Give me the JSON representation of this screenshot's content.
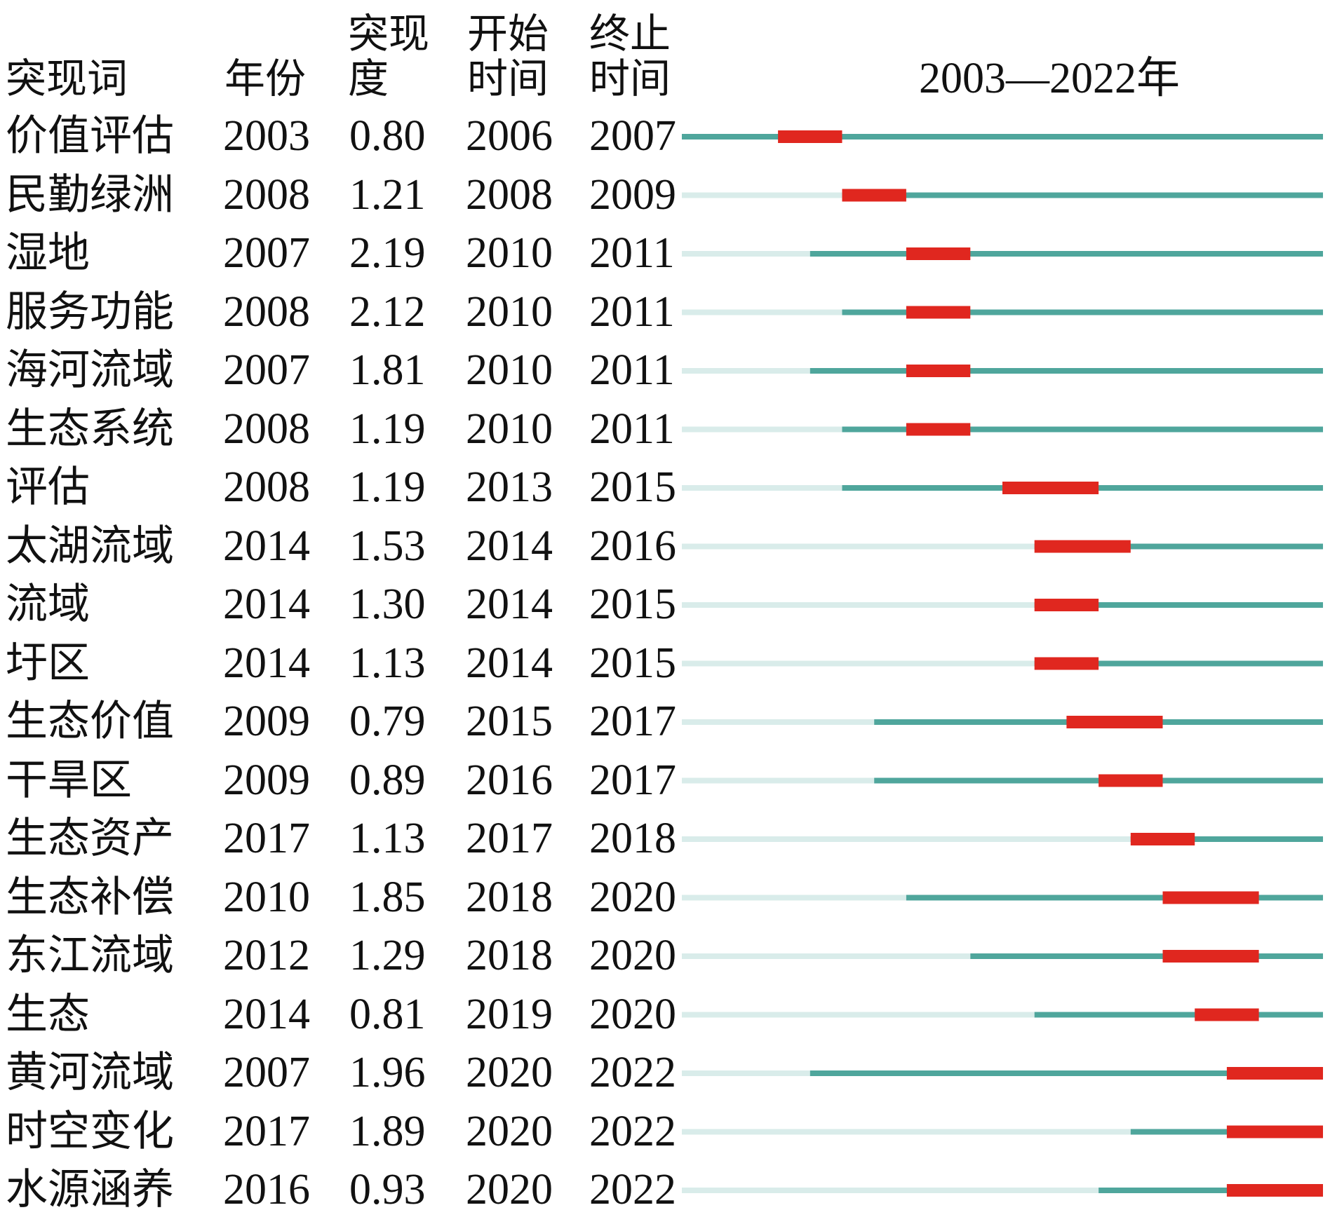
{
  "headers": {
    "keyword": "突现词",
    "year": "年份",
    "strength": "突现度",
    "begin": "开始时间",
    "end": "终止时间",
    "timeline": "2003—2022年"
  },
  "chart_data": {
    "type": "table",
    "timeline_range": [
      2003,
      2022
    ],
    "colors": {
      "before": "#d9ecea",
      "span": "#4fa69c",
      "burst": "#e0271f"
    },
    "columns": [
      "突现词",
      "年份",
      "突现度",
      "开始时间",
      "终止时间"
    ],
    "rows": [
      {
        "keyword": "价值评估",
        "year": "2003",
        "strength": "0.80",
        "begin": "2006",
        "end": "2007"
      },
      {
        "keyword": "民勤绿洲",
        "year": "2008",
        "strength": "1.21",
        "begin": "2008",
        "end": "2009"
      },
      {
        "keyword": "湿地",
        "year": "2007",
        "strength": "2.19",
        "begin": "2010",
        "end": "2011"
      },
      {
        "keyword": "服务功能",
        "year": "2008",
        "strength": "2.12",
        "begin": "2010",
        "end": "2011"
      },
      {
        "keyword": "海河流域",
        "year": "2007",
        "strength": "1.81",
        "begin": "2010",
        "end": "2011"
      },
      {
        "keyword": "生态系统",
        "year": "2008",
        "strength": "1.19",
        "begin": "2010",
        "end": "2011"
      },
      {
        "keyword": "评估",
        "year": "2008",
        "strength": "1.19",
        "begin": "2013",
        "end": "2015"
      },
      {
        "keyword": "太湖流域",
        "year": "2014",
        "strength": "1.53",
        "begin": "2014",
        "end": "2016"
      },
      {
        "keyword": "流域",
        "year": "2014",
        "strength": "1.30",
        "begin": "2014",
        "end": "2015"
      },
      {
        "keyword": "圩区",
        "year": "2014",
        "strength": "1.13",
        "begin": "2014",
        "end": "2015"
      },
      {
        "keyword": "生态价值",
        "year": "2009",
        "strength": "0.79",
        "begin": "2015",
        "end": "2017"
      },
      {
        "keyword": "干旱区",
        "year": "2009",
        "strength": "0.89",
        "begin": "2016",
        "end": "2017"
      },
      {
        "keyword": "生态资产",
        "year": "2017",
        "strength": "1.13",
        "begin": "2017",
        "end": "2018"
      },
      {
        "keyword": "生态补偿",
        "year": "2010",
        "strength": "1.85",
        "begin": "2018",
        "end": "2020"
      },
      {
        "keyword": "东江流域",
        "year": "2012",
        "strength": "1.29",
        "begin": "2018",
        "end": "2020"
      },
      {
        "keyword": "生态",
        "year": "2014",
        "strength": "0.81",
        "begin": "2019",
        "end": "2020"
      },
      {
        "keyword": "黄河流域",
        "year": "2007",
        "strength": "1.96",
        "begin": "2020",
        "end": "2022"
      },
      {
        "keyword": "时空变化",
        "year": "2017",
        "strength": "1.89",
        "begin": "2020",
        "end": "2022"
      },
      {
        "keyword": "水源涵养",
        "year": "2016",
        "strength": "0.93",
        "begin": "2020",
        "end": "2022"
      }
    ]
  }
}
